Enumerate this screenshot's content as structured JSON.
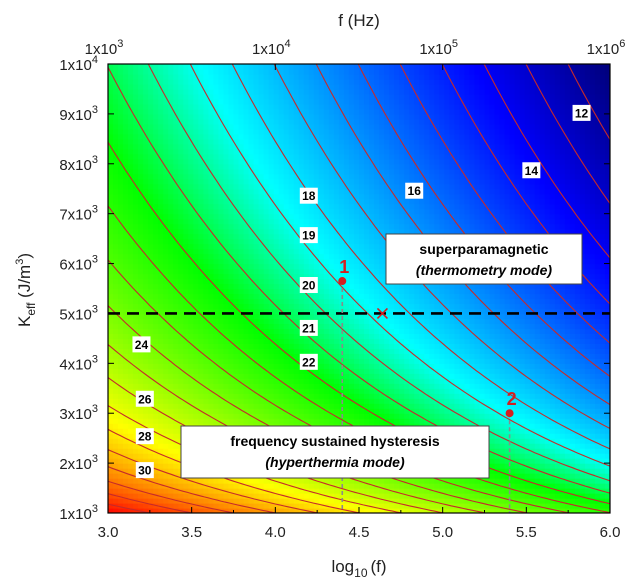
{
  "chart_data": {
    "type": "heatmap",
    "colormap": [
      "#ff0000",
      "#ff7f00",
      "#ffff00",
      "#80ff00",
      "#00ff00",
      "#00ffff",
      "#0080ff",
      "#0000ff",
      "#00007a"
    ],
    "contour_color": "#c62a2a",
    "x_bottom": {
      "label_main": "log",
      "label_sub": "10",
      "label_tail": "(f)",
      "range": [
        3.0,
        6.0
      ],
      "ticks": [
        3.0,
        3.5,
        4.0,
        4.5,
        5.0,
        5.5,
        6.0
      ],
      "tick_labels": [
        "3.0",
        "3.5",
        "4.0",
        "4.5",
        "5.0",
        "5.5",
        "6.0"
      ]
    },
    "x_top": {
      "label": "f (Hz)",
      "ticks_log": [
        3,
        4,
        5,
        6
      ],
      "tick_labels": [
        {
          "base": "1x10",
          "exp": "3"
        },
        {
          "base": "1x10",
          "exp": "4"
        },
        {
          "base": "1x10",
          "exp": "5"
        },
        {
          "base": "1x10",
          "exp": "6"
        }
      ]
    },
    "y": {
      "label_main": "K",
      "label_sub": "eff",
      "label_tail": " (J/m",
      "label_sup": "3",
      "label_end": ")",
      "range": [
        1000,
        10000
      ],
      "ticks": [
        1000,
        2000,
        3000,
        4000,
        5000,
        6000,
        7000,
        8000,
        9000,
        10000
      ],
      "tick_labels": [
        {
          "base": "1x10",
          "exp": "3"
        },
        {
          "base": "2x10",
          "exp": "3"
        },
        {
          "base": "3x10",
          "exp": "3"
        },
        {
          "base": "4x10",
          "exp": "3"
        },
        {
          "base": "5x10",
          "exp": "3"
        },
        {
          "base": "6x10",
          "exp": "3"
        },
        {
          "base": "7x10",
          "exp": "3"
        },
        {
          "base": "8x10",
          "exp": "3"
        },
        {
          "base": "9x10",
          "exp": "3"
        },
        {
          "base": "1x10",
          "exp": "4"
        }
      ]
    },
    "contour_labels": [
      {
        "text": "12",
        "x": 5.83,
        "y": 9020
      },
      {
        "text": "14",
        "x": 5.53,
        "y": 7870
      },
      {
        "text": "16",
        "x": 4.83,
        "y": 7460
      },
      {
        "text": "18",
        "x": 4.2,
        "y": 7360
      },
      {
        "text": "19",
        "x": 4.2,
        "y": 6570
      },
      {
        "text": "20",
        "x": 4.2,
        "y": 5570
      },
      {
        "text": "21",
        "x": 4.2,
        "y": 4710
      },
      {
        "text": "22",
        "x": 4.2,
        "y": 4030
      },
      {
        "text": "24",
        "x": 3.2,
        "y": 4380
      },
      {
        "text": "26",
        "x": 3.22,
        "y": 3290
      },
      {
        "text": "28",
        "x": 3.22,
        "y": 2540
      },
      {
        "text": "30",
        "x": 3.22,
        "y": 1860
      }
    ],
    "threshold_line": {
      "y": 5000
    },
    "points": [
      {
        "label": "1",
        "x": 4.4,
        "y": 5650
      },
      {
        "label": "2",
        "x": 5.4,
        "y": 3000
      }
    ],
    "crossing_marker": {
      "x": 4.64,
      "y": 5000
    },
    "regions": [
      {
        "line1": "superparamagnetic",
        "line2": "(thermometry mode)"
      },
      {
        "line1": "frequency sustained hysteresis",
        "line2": "(hyperthermia mode)"
      }
    ]
  }
}
